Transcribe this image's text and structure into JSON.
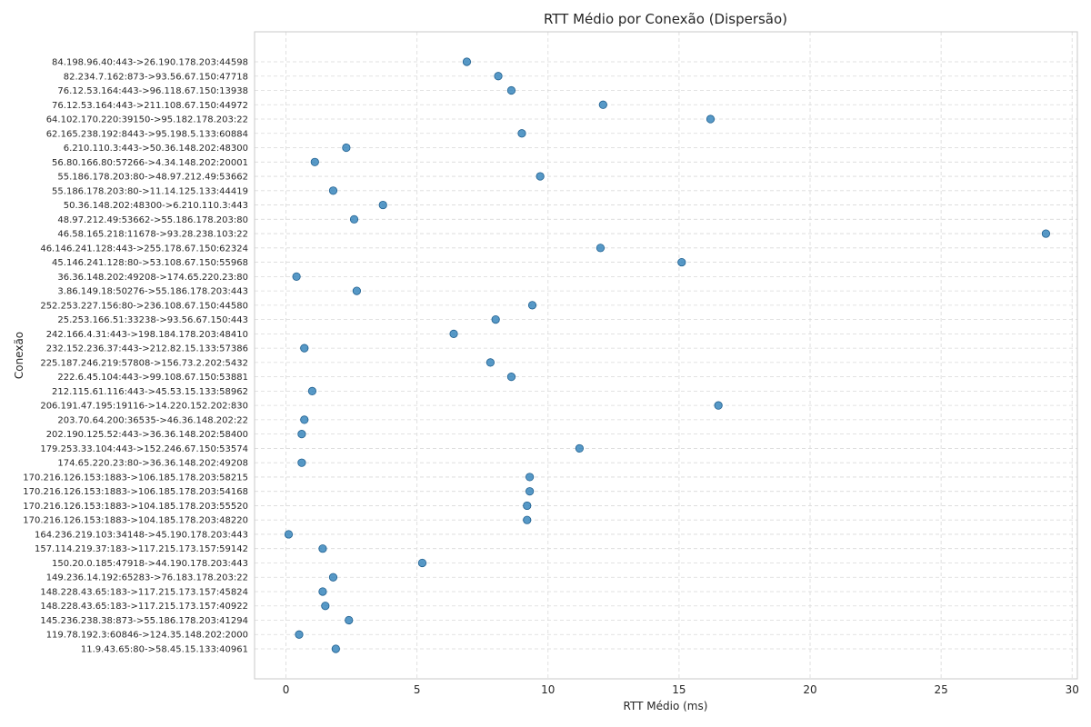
{
  "chart_data": {
    "type": "scatter",
    "title": "RTT Médio por Conexão (Dispersão)",
    "xlabel": "RTT Médio (ms)",
    "ylabel": "Conexão",
    "xlim": [
      -1.2,
      30.2
    ],
    "xticks": [
      0,
      5,
      10,
      15,
      20,
      25,
      30
    ],
    "grid": true,
    "color": "#1f77b4",
    "points": [
      {
        "label": "84.198.96.40:443->26.190.178.203:44598",
        "value": 6.9
      },
      {
        "label": "82.234.7.162:873->93.56.67.150:47718",
        "value": 8.1
      },
      {
        "label": "76.12.53.164:443->96.118.67.150:13938",
        "value": 8.6
      },
      {
        "label": "76.12.53.164:443->211.108.67.150:44972",
        "value": 12.1
      },
      {
        "label": "64.102.170.220:39150->95.182.178.203:22",
        "value": 16.2
      },
      {
        "label": "62.165.238.192:8443->95.198.5.133:60884",
        "value": 9.0
      },
      {
        "label": "6.210.110.3:443->50.36.148.202:48300",
        "value": 2.3
      },
      {
        "label": "56.80.166.80:57266->4.34.148.202:20001",
        "value": 1.1
      },
      {
        "label": "55.186.178.203:80->48.97.212.49:53662",
        "value": 9.7
      },
      {
        "label": "55.186.178.203:80->11.14.125.133:44419",
        "value": 1.8
      },
      {
        "label": "50.36.148.202:48300->6.210.110.3:443",
        "value": 3.7
      },
      {
        "label": "48.97.212.49:53662->55.186.178.203:80",
        "value": 2.6
      },
      {
        "label": "46.58.165.218:11678->93.28.238.103:22",
        "value": 29.0
      },
      {
        "label": "46.146.241.128:443->255.178.67.150:62324",
        "value": 12.0
      },
      {
        "label": "45.146.241.128:80->53.108.67.150:55968",
        "value": 15.1
      },
      {
        "label": "36.36.148.202:49208->174.65.220.23:80",
        "value": 0.4
      },
      {
        "label": "3.86.149.18:50276->55.186.178.203:443",
        "value": 2.7
      },
      {
        "label": "252.253.227.156:80->236.108.67.150:44580",
        "value": 9.4
      },
      {
        "label": "25.253.166.51:33238->93.56.67.150:443",
        "value": 8.0
      },
      {
        "label": "242.166.4.31:443->198.184.178.203:48410",
        "value": 6.4
      },
      {
        "label": "232.152.236.37:443->212.82.15.133:57386",
        "value": 0.7
      },
      {
        "label": "225.187.246.219:57808->156.73.2.202:5432",
        "value": 7.8
      },
      {
        "label": "222.6.45.104:443->99.108.67.150:53881",
        "value": 8.6
      },
      {
        "label": "212.115.61.116:443->45.53.15.133:58962",
        "value": 1.0
      },
      {
        "label": "206.191.47.195:19116->14.220.152.202:830",
        "value": 16.5
      },
      {
        "label": "203.70.64.200:36535->46.36.148.202:22",
        "value": 0.7
      },
      {
        "label": "202.190.125.52:443->36.36.148.202:58400",
        "value": 0.6
      },
      {
        "label": "179.253.33.104:443->152.246.67.150:53574",
        "value": 11.2
      },
      {
        "label": "174.65.220.23:80->36.36.148.202:49208",
        "value": 0.6
      },
      {
        "label": "170.216.126.153:1883->106.185.178.203:58215",
        "value": 9.3
      },
      {
        "label": "170.216.126.153:1883->106.185.178.203:54168",
        "value": 9.3
      },
      {
        "label": "170.216.126.153:1883->104.185.178.203:55520",
        "value": 9.2
      },
      {
        "label": "170.216.126.153:1883->104.185.178.203:48220",
        "value": 9.2
      },
      {
        "label": "164.236.219.103:34148->45.190.178.203:443",
        "value": 0.1
      },
      {
        "label": "157.114.219.37:183->117.215.173.157:59142",
        "value": 1.4
      },
      {
        "label": "150.20.0.185:47918->44.190.178.203:443",
        "value": 5.2
      },
      {
        "label": "149.236.14.192:65283->76.183.178.203:22",
        "value": 1.8
      },
      {
        "label": "148.228.43.65:183->117.215.173.157:45824",
        "value": 1.4
      },
      {
        "label": "148.228.43.65:183->117.215.173.157:40922",
        "value": 1.5
      },
      {
        "label": "145.236.238.38:873->55.186.178.203:41294",
        "value": 2.4
      },
      {
        "label": "119.78.192.3:60846->124.35.148.202:2000",
        "value": 0.5
      },
      {
        "label": "11.9.43.65:80->58.45.15.133:40961",
        "value": 1.9
      }
    ]
  }
}
